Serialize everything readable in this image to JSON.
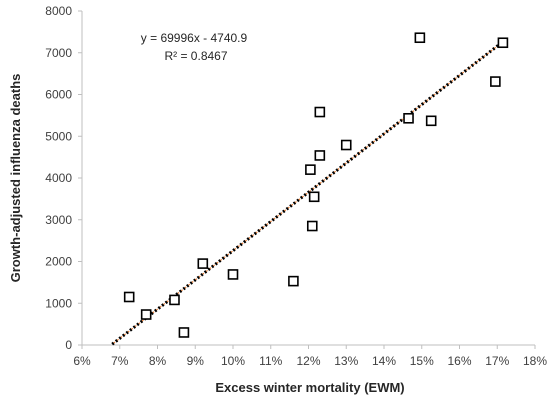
{
  "chart_data": {
    "type": "scatter",
    "title": "",
    "xlabel": "Excess winter mortality (EWM)",
    "ylabel": "Growth-adjusted influenza deaths",
    "xlim": [
      6,
      18
    ],
    "ylim": [
      0,
      8000
    ],
    "x_tick_values": [
      6,
      7,
      8,
      9,
      10,
      11,
      12,
      13,
      14,
      15,
      16,
      17,
      18
    ],
    "x_tick_labels": [
      "6%",
      "7%",
      "8%",
      "9%",
      "10%",
      "11%",
      "12%",
      "13%",
      "14%",
      "15%",
      "16%",
      "17%",
      "18%"
    ],
    "y_tick_values": [
      0,
      1000,
      2000,
      3000,
      4000,
      5000,
      6000,
      7000,
      8000
    ],
    "y_tick_labels": [
      "0",
      "1000",
      "2000",
      "3000",
      "4000",
      "5000",
      "6000",
      "7000",
      "8000"
    ],
    "grid": false,
    "legend": "none",
    "series": [
      {
        "marker": "hollow-square",
        "color": "#000000",
        "points": [
          {
            "x": 7.25,
            "y": 1150
          },
          {
            "x": 7.7,
            "y": 730
          },
          {
            "x": 8.45,
            "y": 1080
          },
          {
            "x": 8.7,
            "y": 300
          },
          {
            "x": 9.2,
            "y": 1950
          },
          {
            "x": 10.0,
            "y": 1690
          },
          {
            "x": 11.6,
            "y": 1530
          },
          {
            "x": 12.05,
            "y": 4200
          },
          {
            "x": 12.1,
            "y": 2850
          },
          {
            "x": 12.15,
            "y": 3550
          },
          {
            "x": 12.3,
            "y": 5580
          },
          {
            "x": 12.3,
            "y": 4540
          },
          {
            "x": 13.0,
            "y": 4790
          },
          {
            "x": 14.65,
            "y": 5430
          },
          {
            "x": 14.95,
            "y": 7360
          },
          {
            "x": 15.25,
            "y": 5370
          },
          {
            "x": 16.95,
            "y": 6310
          },
          {
            "x": 17.15,
            "y": 7240
          }
        ]
      }
    ],
    "trendline": {
      "type": "linear",
      "slope": 69996,
      "intercept": -4740.9,
      "x_range": [
        6.8,
        17.2
      ],
      "color_outer": "#000000",
      "color_inner": "#ED7D31",
      "style": "dotted"
    },
    "annotations": {
      "equation": "y = 69996x - 4740.9",
      "r_squared": "R² = 0.8467"
    }
  }
}
